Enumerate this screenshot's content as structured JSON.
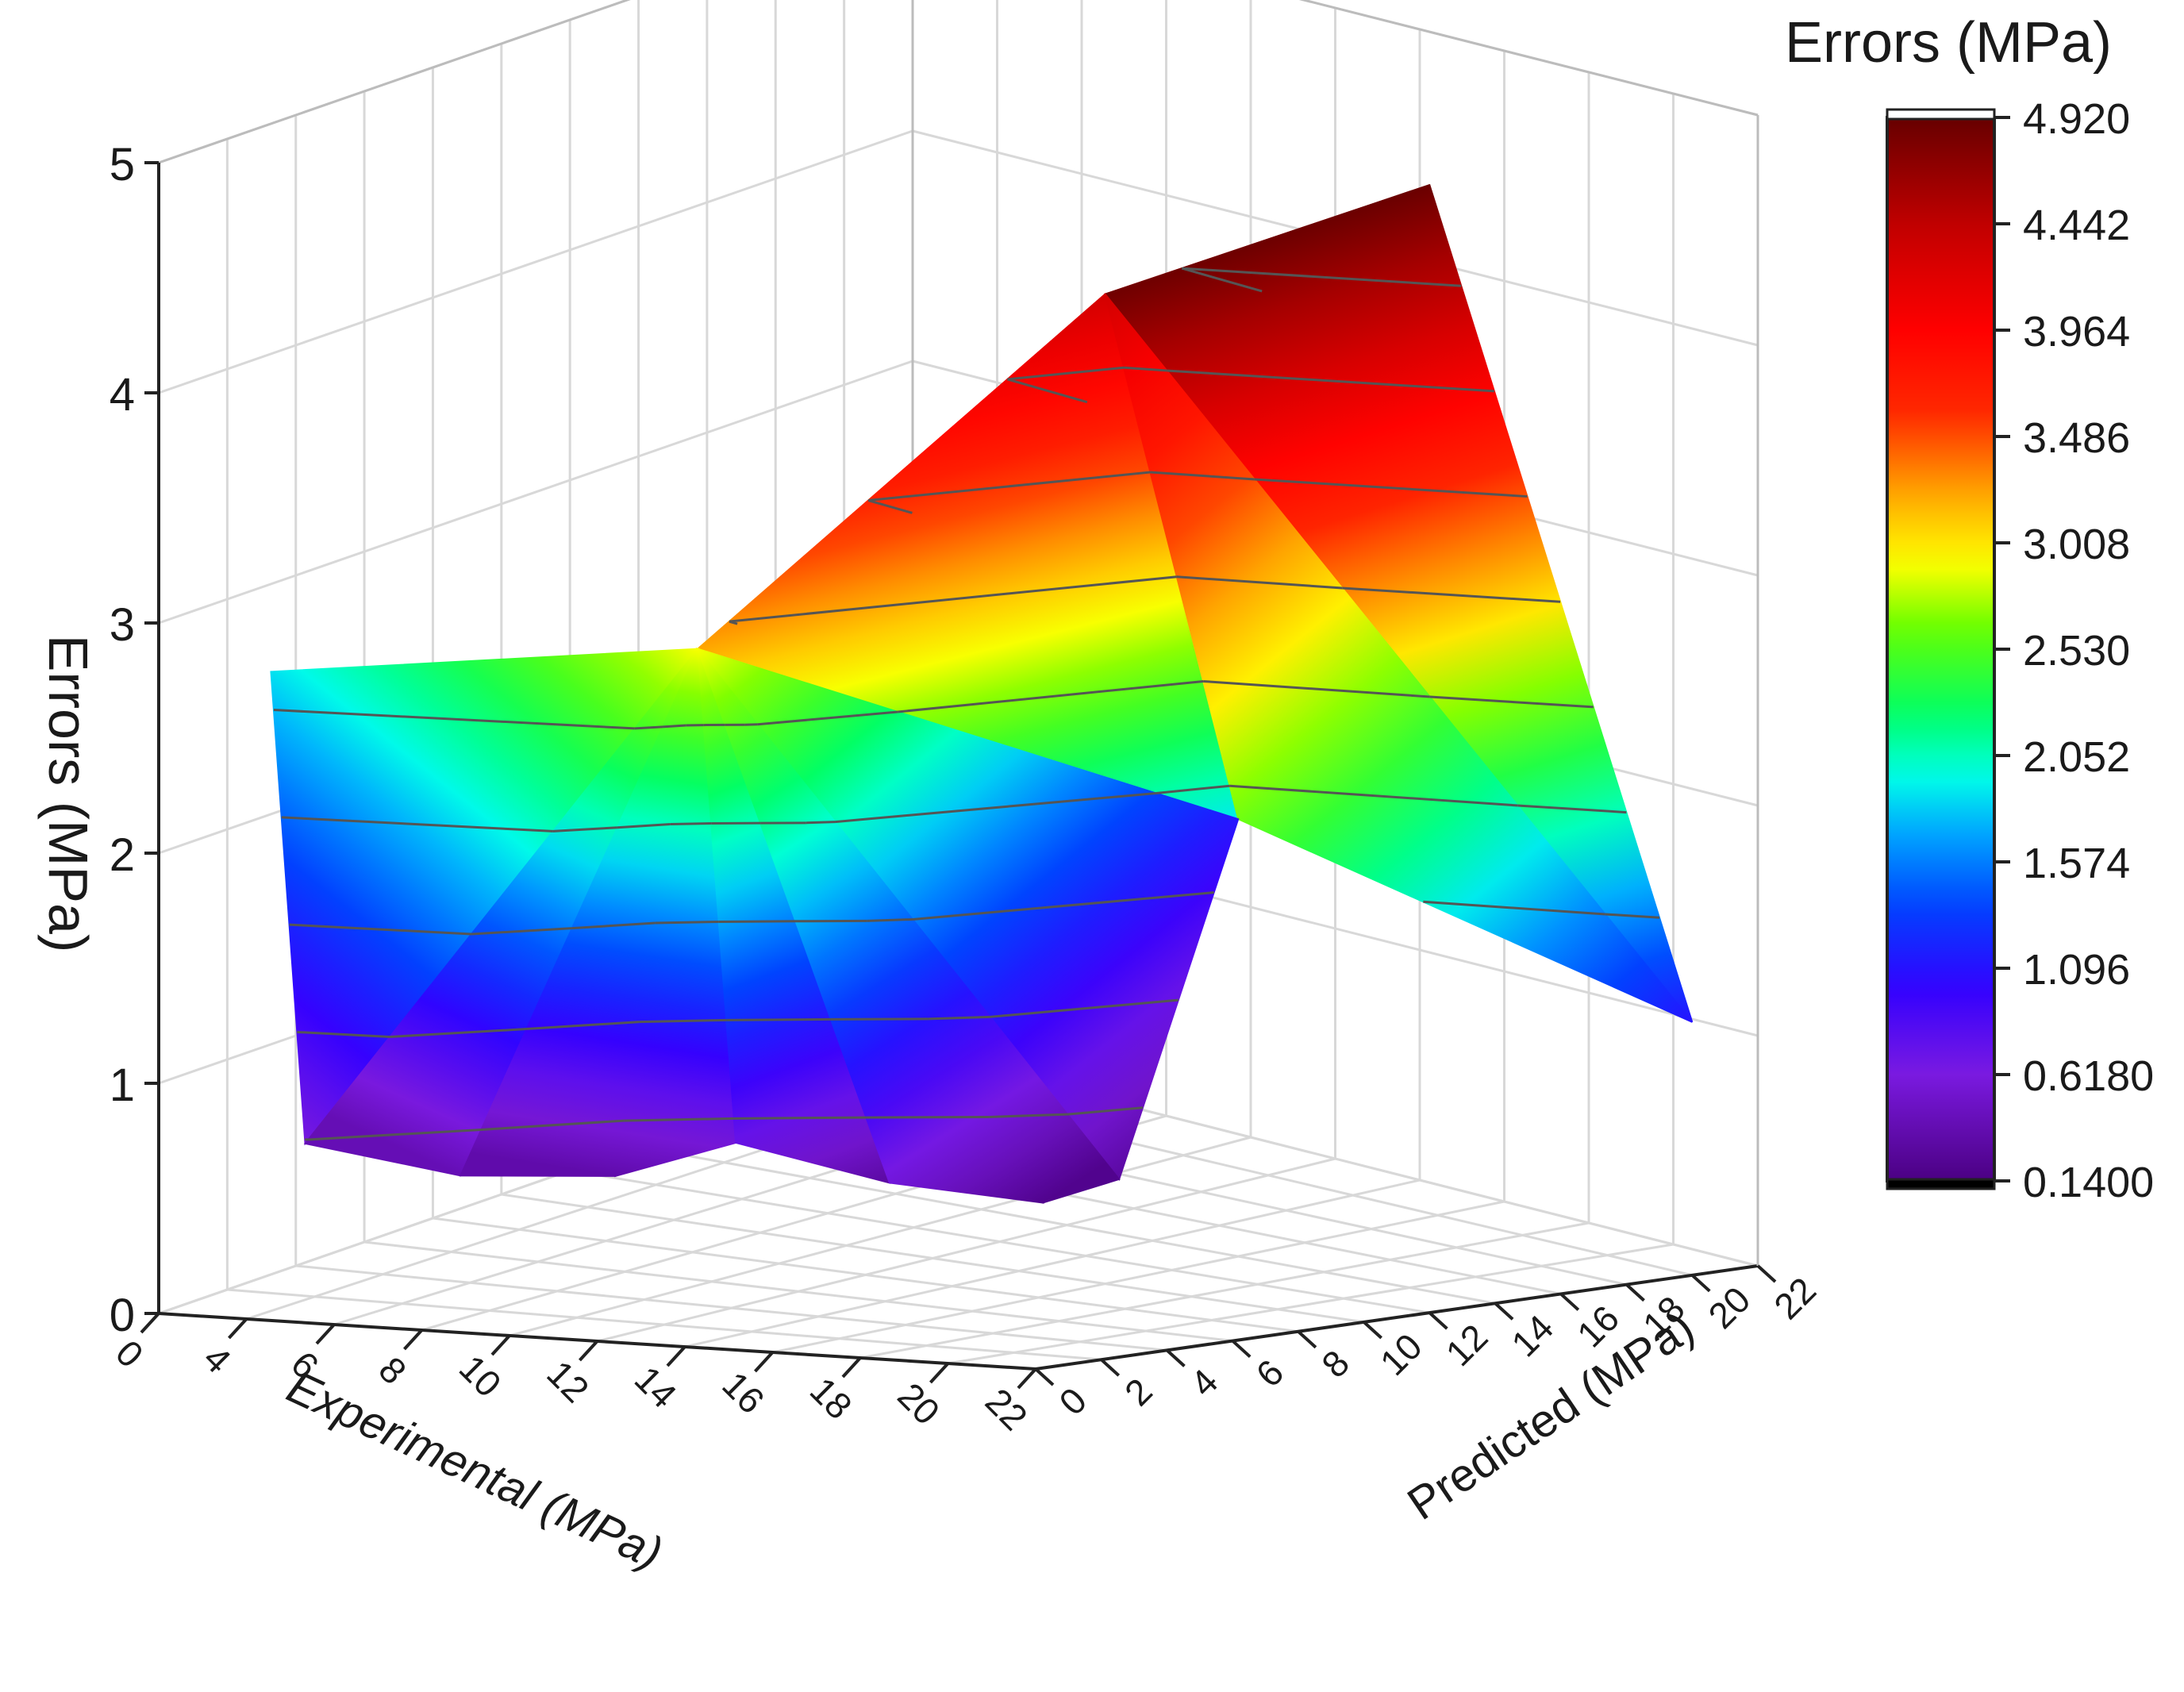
{
  "chart_data": {
    "type": "surface3d",
    "title": "",
    "colorbar_title": "Errors (MPa)",
    "xlabel": "Experimental (MPa)",
    "ylabel": "Predicted (MPa)",
    "zlabel": "Errors (MPa)",
    "xlim": [
      2,
      22
    ],
    "ylim": [
      0,
      22
    ],
    "zlim": [
      0,
      5
    ],
    "x_ticks": [
      "0",
      "4",
      "6",
      "8",
      "10",
      "12",
      "14",
      "16",
      "18",
      "20",
      "22"
    ],
    "y_ticks": [
      "0",
      "2",
      "4",
      "6",
      "8",
      "10",
      "12",
      "14",
      "16",
      "18",
      "20",
      "22"
    ],
    "z_ticks": [
      "0",
      "1",
      "2",
      "3",
      "4",
      "5"
    ],
    "colorbar_ticks": [
      "4.920",
      "4.442",
      "3.964",
      "3.486",
      "3.008",
      "2.530",
      "2.052",
      "1.574",
      "1.096",
      "0.6180",
      "0.1400"
    ],
    "color_range": [
      0.14,
      4.92
    ],
    "grid": true,
    "colormap": [
      "#000000",
      "#4b0082",
      "#8a2be2",
      "#0000ff",
      "#00bfff",
      "#00ffff",
      "#00ff00",
      "#ffff00",
      "#ffa500",
      "#ff0000",
      "#8b0000",
      "#ffffff"
    ],
    "surface_points": [
      {
        "x": 3,
        "y": 2,
        "z": 2.7
      },
      {
        "x": 3,
        "y": 3,
        "z": 0.6
      },
      {
        "x": 5,
        "y": 5,
        "z": 0.4
      },
      {
        "x": 7,
        "y": 7,
        "z": 0.35
      },
      {
        "x": 9,
        "y": 8,
        "z": 0.5
      },
      {
        "x": 11,
        "y": 10,
        "z": 0.3
      },
      {
        "x": 13,
        "y": 12,
        "z": 0.2
      },
      {
        "x": 14,
        "y": 13,
        "z": 0.3
      },
      {
        "x": 12,
        "y": 3,
        "z": 2.9
      },
      {
        "x": 16,
        "y": 14,
        "z": 1.9
      },
      {
        "x": 16,
        "y": 10,
        "z": 4.3
      },
      {
        "x": 22,
        "y": 12,
        "z": 4.9
      },
      {
        "x": 22,
        "y": 20,
        "z": 1.1
      }
    ]
  }
}
